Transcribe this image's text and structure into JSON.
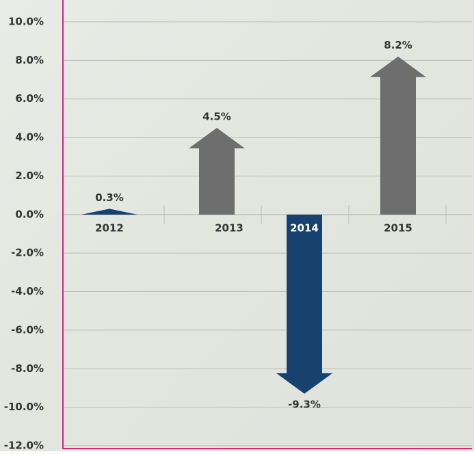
{
  "chart_data": {
    "type": "arrow-bar",
    "categories": [
      "2012",
      "2013",
      "2014",
      "2015"
    ],
    "values": [
      0.3,
      4.5,
      -9.3,
      8.2
    ],
    "value_labels": [
      "0.3%",
      "4.5%",
      "-9.3%",
      "8.2%"
    ],
    "colors": [
      "#17426f",
      "#6e6e6e",
      "#17426f",
      "#6e6e6e"
    ],
    "ylim": [
      -12,
      10
    ],
    "yticks": [
      {
        "value": -12,
        "label": "-12.0%"
      },
      {
        "value": -10,
        "label": "-10.0%"
      },
      {
        "value": -8,
        "label": "-8.0%"
      },
      {
        "value": -6,
        "label": "-6.0%"
      },
      {
        "value": -4,
        "label": "-4.0%"
      },
      {
        "value": -2,
        "label": "-2.0%"
      },
      {
        "value": 0,
        "label": "0.0%"
      },
      {
        "value": 2,
        "label": "2.0%"
      },
      {
        "value": 4,
        "label": "4.0%"
      },
      {
        "value": 6,
        "label": "6.0%"
      },
      {
        "value": 8,
        "label": "8.0%"
      },
      {
        "value": 10,
        "label": "10.0%"
      }
    ],
    "grid": true
  }
}
